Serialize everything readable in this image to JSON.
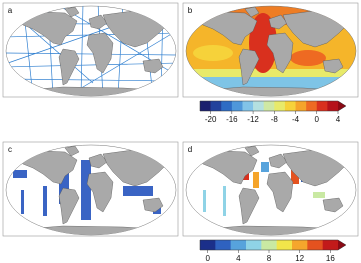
{
  "panels": [
    {
      "label": "a"
    },
    {
      "label": "b"
    },
    {
      "label": "c"
    },
    {
      "label": "d"
    }
  ],
  "colorbars": [
    {
      "lim": [
        -22,
        4
      ],
      "ticks": [
        -20,
        -16,
        -12,
        -8,
        -4,
        0,
        4
      ],
      "extend": "max",
      "colors": [
        "#1b1f6e",
        "#23429c",
        "#2e6cc4",
        "#4f97da",
        "#82c3e8",
        "#b4e0e0",
        "#cfe8a4",
        "#e8ea6a",
        "#f6d23a",
        "#f5a42a",
        "#ee6a22",
        "#d9301e",
        "#b5121a"
      ],
      "extend_color": "#8a0a14"
    },
    {
      "lim": [
        -1,
        17
      ],
      "ticks": [
        0,
        4,
        8,
        12,
        16
      ],
      "extend": "max",
      "colors": [
        "#1b2f8a",
        "#2f62c0",
        "#57a3dc",
        "#8fd3e6",
        "#c9e9a3",
        "#f2e54a",
        "#f5a62c",
        "#e4521f",
        "#c21a1a"
      ],
      "extend_color": "#8a0a14"
    }
  ]
}
